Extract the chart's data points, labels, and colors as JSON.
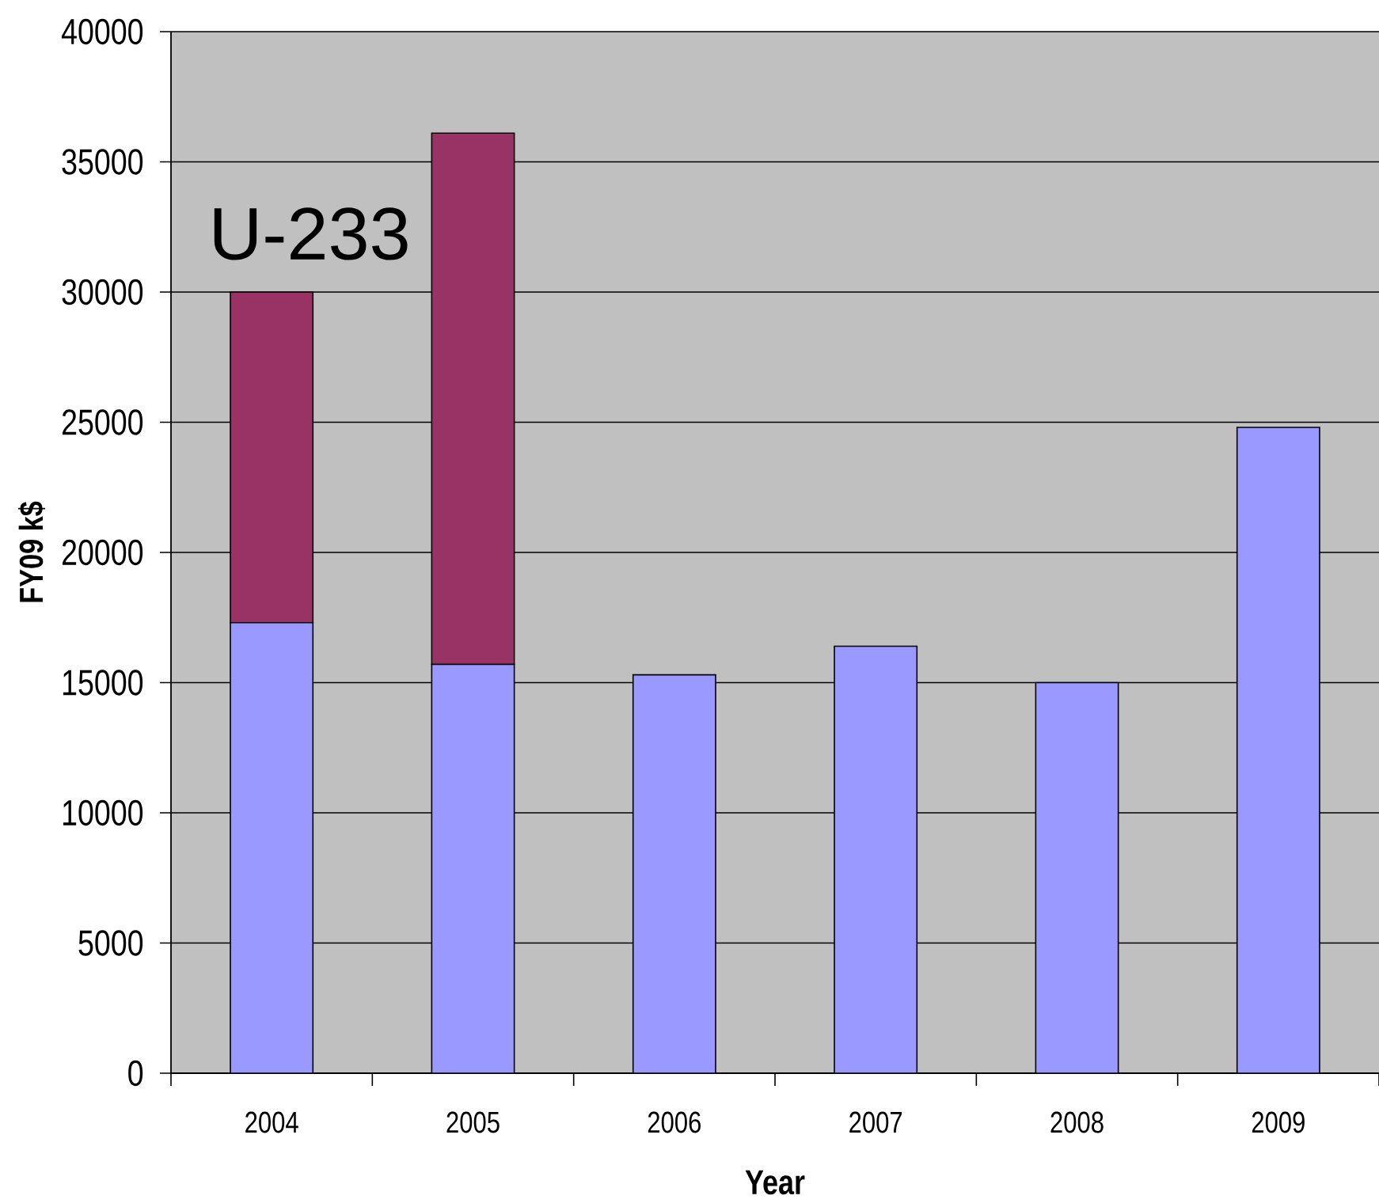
{
  "chart_data": {
    "type": "bar",
    "stacked": true,
    "xlabel": "Year",
    "ylabel": "FY09 k$",
    "categories": [
      "2004",
      "2005",
      "2006",
      "2007",
      "2008",
      "2009"
    ],
    "series": [
      {
        "color": "#9999ff",
        "values": [
          17300,
          15700,
          15300,
          16400,
          15000,
          24800
        ]
      },
      {
        "name": "U-233",
        "color": "#993366",
        "values": [
          12700,
          20400,
          null,
          null,
          null,
          null
        ]
      }
    ],
    "ylim": [
      0,
      40000
    ],
    "yticks": [
      0,
      5000,
      10000,
      15000,
      20000,
      25000,
      30000,
      35000,
      40000
    ],
    "grid": "y"
  }
}
